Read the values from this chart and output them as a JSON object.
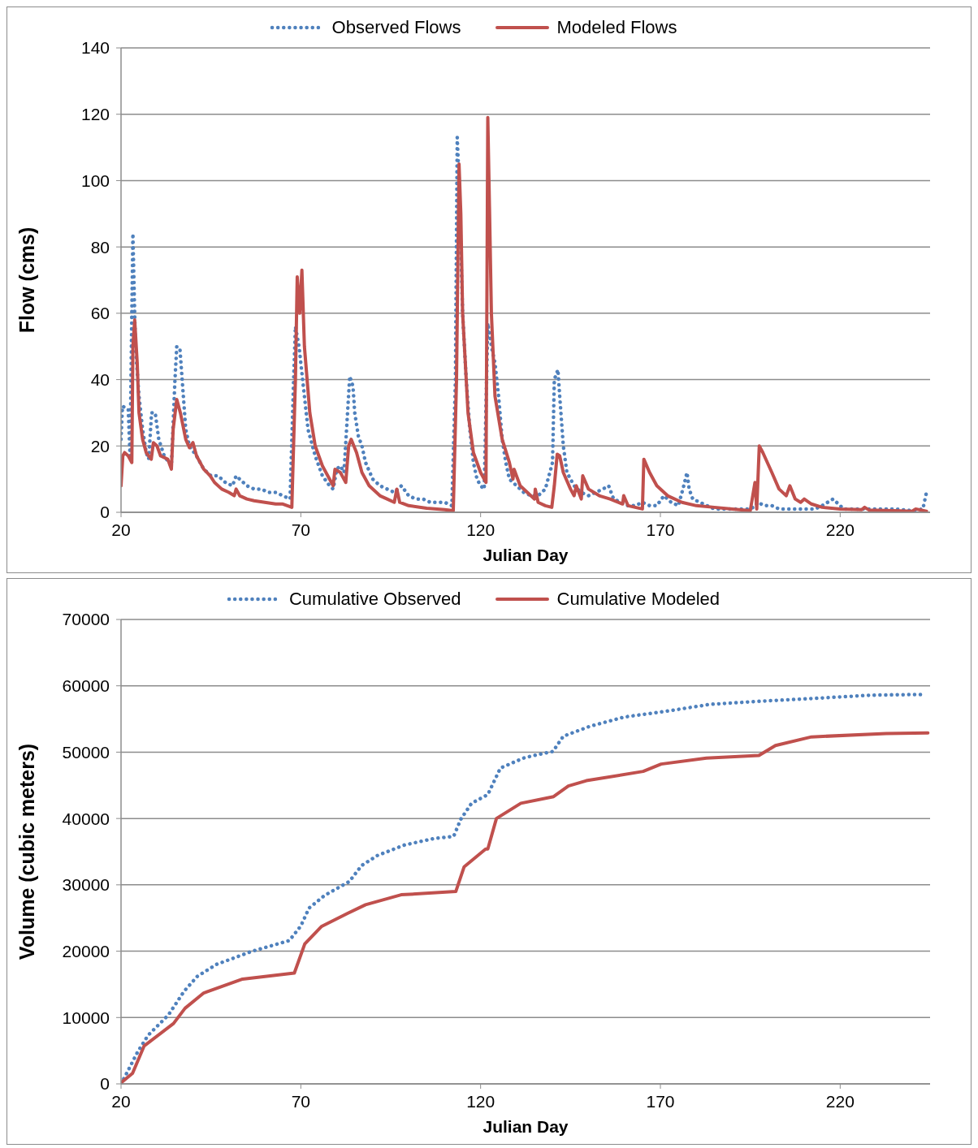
{
  "chart_data": [
    {
      "type": "line",
      "xlabel": "Julian Day",
      "ylabel": "Flow (cms)",
      "xlim": [
        20,
        245
      ],
      "xticks": [
        20,
        70,
        120,
        170,
        220
      ],
      "ylim": [
        0,
        140
      ],
      "yticks": [
        0,
        20,
        40,
        60,
        80,
        100,
        120,
        140
      ],
      "grid": "y",
      "legend": "top",
      "marker": "none",
      "series": [
        {
          "name": "Observed Flows",
          "color": "#4f81bd",
          "line_style": "dotted",
          "x": [
            20,
            20.4,
            22,
            22.5,
            23,
            23.3,
            24,
            25,
            26,
            27,
            27.7,
            28.5,
            29.5,
            30.5,
            32,
            34,
            35,
            35.5,
            36.4,
            37,
            38,
            39,
            41,
            43,
            45,
            47,
            49,
            51,
            52,
            53,
            55,
            57,
            59,
            61,
            63,
            65,
            67,
            68,
            68.5,
            69.5,
            70,
            71,
            72,
            74,
            76,
            78,
            79,
            80,
            81,
            82,
            83,
            83.6,
            84.5,
            85,
            86,
            87,
            88,
            90,
            92,
            94,
            96,
            98,
            100,
            102,
            104,
            106,
            108,
            110,
            112,
            113,
            113.5,
            114,
            115,
            116,
            117,
            118,
            119,
            120,
            121,
            122,
            123,
            124,
            125,
            126,
            127,
            128,
            130,
            132,
            134,
            136,
            137,
            138,
            140,
            140.5,
            141.5,
            142,
            143,
            144,
            146,
            148,
            150,
            152,
            154,
            155.6,
            157,
            159,
            161,
            163,
            165,
            167,
            169,
            171,
            173,
            175,
            176.5,
            177.4,
            178,
            179,
            181,
            183,
            185,
            187,
            189,
            191,
            193,
            195,
            196.5,
            197,
            199,
            201,
            203,
            205,
            207,
            209,
            211,
            213,
            215,
            218,
            219,
            220,
            221,
            225,
            230,
            235,
            240,
            243,
            244
          ],
          "values": [
            22,
            32,
            31,
            17,
            60,
            84,
            50,
            35,
            25,
            18,
            16,
            30,
            30,
            22,
            17,
            14,
            40,
            50,
            49,
            40,
            25,
            20,
            17,
            13,
            11,
            11,
            9,
            8,
            11,
            10,
            8,
            7,
            7,
            6,
            6,
            5,
            4,
            40,
            56,
            50,
            45,
            35,
            25,
            17,
            11,
            8,
            7,
            13,
            14,
            12,
            30,
            41,
            38,
            30,
            23,
            20,
            15,
            10,
            8,
            7,
            6,
            8,
            5,
            4,
            4,
            3,
            3,
            3,
            2,
            40,
            113,
            100,
            60,
            40,
            25,
            15,
            10,
            8,
            7,
            57,
            50,
            45,
            35,
            22,
            15,
            10,
            8,
            6,
            5,
            5,
            6,
            7,
            15,
            40,
            43,
            35,
            20,
            12,
            8,
            6,
            5,
            6,
            7,
            8,
            4,
            3,
            2,
            2,
            3,
            2,
            2,
            5,
            3,
            2,
            8,
            12,
            7,
            4,
            3,
            2,
            1,
            1,
            1,
            1,
            1,
            1,
            2,
            3,
            2,
            2,
            1,
            1,
            1,
            1,
            1,
            1,
            2,
            4,
            3,
            2,
            1,
            1,
            1,
            1,
            0.5,
            1,
            6
          ]
        },
        {
          "name": "Modeled Flows",
          "color": "#c0504d",
          "line_style": "solid",
          "x": [
            20,
            20.5,
            21,
            22,
            23,
            23.3,
            23.8,
            24.5,
            25,
            26,
            27,
            28.4,
            29,
            30,
            31,
            33,
            34,
            34.5,
            35.5,
            36.5,
            38,
            39,
            40,
            41,
            43,
            44.8,
            46,
            48,
            50,
            51.5,
            52,
            53,
            55,
            57,
            60,
            63,
            65,
            67.5,
            68.5,
            69,
            69.7,
            70.3,
            71,
            72.5,
            74,
            76,
            77,
            79,
            79.5,
            81,
            82.5,
            83.3,
            84,
            85.5,
            87,
            89,
            92,
            94,
            96,
            96.7,
            97.5,
            100,
            105,
            110,
            112.4,
            113.3,
            114,
            114.5,
            115,
            116.5,
            118,
            120,
            121.5,
            122,
            122.5,
            123,
            124,
            126,
            128,
            129,
            129.3,
            131,
            133,
            135,
            135.2,
            136,
            138,
            139.8,
            140.5,
            141.3,
            142,
            143,
            145,
            146,
            146.6,
            148,
            148.4,
            150,
            153,
            156,
            159.5,
            159.8,
            161,
            165,
            165.4,
            167,
            169,
            172,
            176,
            180,
            185,
            190,
            195,
            196.3,
            196.8,
            197.5,
            198.5,
            201,
            203,
            205,
            206,
            207.5,
            209,
            210,
            212,
            215,
            220,
            226,
            226.8,
            228,
            235,
            240,
            241,
            244
          ],
          "values": [
            8,
            17,
            18,
            17,
            15,
            50,
            58,
            45,
            30,
            22,
            18,
            16,
            21,
            20,
            17,
            16,
            13,
            25,
            34,
            30,
            22,
            19.5,
            21,
            17,
            13,
            11,
            9,
            7,
            6,
            5,
            7,
            5,
            4,
            3.5,
            3,
            2.5,
            2.5,
            1.5,
            40,
            71,
            60,
            73,
            50,
            30,
            20,
            14,
            12,
            8,
            13,
            12,
            9,
            20,
            22,
            18,
            12,
            8,
            5,
            4,
            3,
            7,
            3,
            2,
            1.2,
            0.8,
            0.5,
            40,
            105,
            90,
            60,
            30,
            18,
            12,
            9,
            119,
            90,
            60,
            35,
            22,
            15,
            10,
            13,
            8,
            6,
            4,
            7,
            3,
            2,
            1.5,
            8,
            17.5,
            17,
            12,
            7,
            5,
            8,
            4,
            11,
            7,
            5,
            4,
            2.5,
            5,
            2,
            1,
            16,
            12,
            8,
            5,
            3,
            2,
            1.5,
            1,
            0.5,
            9,
            1,
            20,
            18,
            12,
            7,
            5,
            8,
            4,
            3,
            4,
            2.5,
            1.5,
            1,
            0.8,
            1.5,
            0.7,
            0.5,
            0.3,
            1,
            0.3
          ]
        }
      ]
    },
    {
      "type": "line",
      "xlabel": "Julian Day",
      "ylabel": "Volume (cubic meters)",
      "xlim": [
        20,
        245
      ],
      "xticks": [
        20,
        70,
        120,
        170,
        220
      ],
      "ylim": [
        0,
        70000
      ],
      "yticks": [
        0,
        10000,
        20000,
        30000,
        40000,
        50000,
        60000,
        70000
      ],
      "grid": "y",
      "legend": "top",
      "marker": "none",
      "series": [
        {
          "name": "Cumulative Observed",
          "color": "#4f81bd",
          "line_style": "dotted",
          "x": [
            20,
            21,
            24.6,
            27.5,
            33.2,
            37.6,
            41.2,
            46.5,
            56.5,
            66.8,
            70,
            72.3,
            76.6,
            83.5,
            86.9,
            91.2,
            98.8,
            107.2,
            112.5,
            114.5,
            117.5,
            122,
            125.5,
            131.9,
            134.8,
            140.1,
            143,
            150.4,
            160,
            173.2,
            183.7,
            198.5,
            212.7,
            229,
            243.5
          ],
          "values": [
            0,
            1000,
            4800,
            7300,
            10400,
            14000,
            16200,
            18000,
            20000,
            21600,
            23800,
            26500,
            28400,
            30500,
            32900,
            34400,
            36000,
            37000,
            37300,
            39900,
            42300,
            43600,
            47600,
            49100,
            49500,
            50100,
            52400,
            53900,
            55300,
            56300,
            57200,
            57700,
            58100,
            58600,
            58700
          ]
        },
        {
          "name": "Cumulative Modeled",
          "color": "#c0504d",
          "line_style": "solid",
          "x": [
            20,
            20.2,
            23.2,
            26.4,
            34.6,
            37.8,
            43,
            53.8,
            68.2,
            71.1,
            75.7,
            83,
            88,
            97.9,
            113.1,
            115.4,
            121.4,
            122,
            124.4,
            131.2,
            140.3,
            144.4,
            149.4,
            165.2,
            170.2,
            182.8,
            197.4,
            202,
            212,
            232.8,
            244.4
          ],
          "values": [
            0,
            250,
            1600,
            5700,
            9100,
            11400,
            13700,
            15800,
            16700,
            21100,
            23700,
            25700,
            27000,
            28500,
            29000,
            32700,
            35400,
            35400,
            40000,
            42300,
            43300,
            44900,
            45700,
            47100,
            48200,
            49100,
            49500,
            51000,
            52300,
            52800,
            52900
          ]
        }
      ]
    }
  ]
}
